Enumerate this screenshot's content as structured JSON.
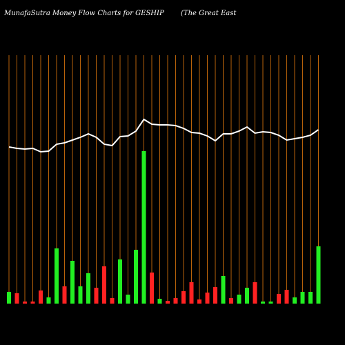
{
  "chart_data": {
    "type": "bar",
    "title": "MunafaSutra  Money Flow  Charts for GESHIP",
    "subtitle": "(The    Great East",
    "categories": [
      null,
      null,
      null,
      null,
      null,
      null,
      null,
      null,
      null,
      null,
      null,
      null,
      null,
      null,
      null,
      null,
      null,
      null,
      null,
      null,
      null,
      null,
      null,
      null,
      null,
      null,
      null,
      null,
      null,
      null,
      null,
      null,
      null,
      null,
      null,
      null,
      null,
      null,
      null,
      null
    ],
    "values": [
      17,
      15,
      3,
      3,
      19,
      9,
      80,
      25,
      62,
      25,
      44,
      23,
      54,
      8,
      64,
      13,
      78,
      221,
      45,
      7,
      4,
      8,
      18,
      31,
      6,
      16,
      24,
      40,
      8,
      13,
      23,
      31,
      3,
      3,
      14,
      20,
      9,
      17,
      17,
      83
    ],
    "colors": [
      "#22ee22",
      "#ff2222",
      "#ff2222",
      "#ff2222",
      "#ff2222",
      "#22ee22",
      "#22ee22",
      "#ff2222",
      "#22ee22",
      "#22ee22",
      "#22ee22",
      "#ff2222",
      "#ff2222",
      "#ff2222",
      "#22ee22",
      "#22ee22",
      "#22ee22",
      "#22ee22",
      "#ff2222",
      "#22ee22",
      "#ff2222",
      "#ff2222",
      "#ff2222",
      "#ff2222",
      "#ff2222",
      "#ff2222",
      "#ff2222",
      "#22ee22",
      "#ff2222",
      "#22ee22",
      "#22ee22",
      "#ff2222",
      "#22ee22",
      "#22ee22",
      "#ff2222",
      "#ff2222",
      "#22ee22",
      "#22ee22",
      "#22ee22",
      "#22ee22"
    ],
    "line": {
      "color": "#ffffff",
      "values": [
        227,
        225,
        224,
        225,
        220,
        221,
        231,
        233,
        237,
        241,
        246,
        241,
        231,
        229,
        242,
        243,
        250,
        267,
        260,
        259,
        259,
        258,
        254,
        248,
        247,
        243,
        236,
        246,
        246,
        250,
        256,
        247,
        249,
        248,
        244,
        237,
        239,
        241,
        244,
        252
      ]
    },
    "grid_color": "#b8620a"
  }
}
